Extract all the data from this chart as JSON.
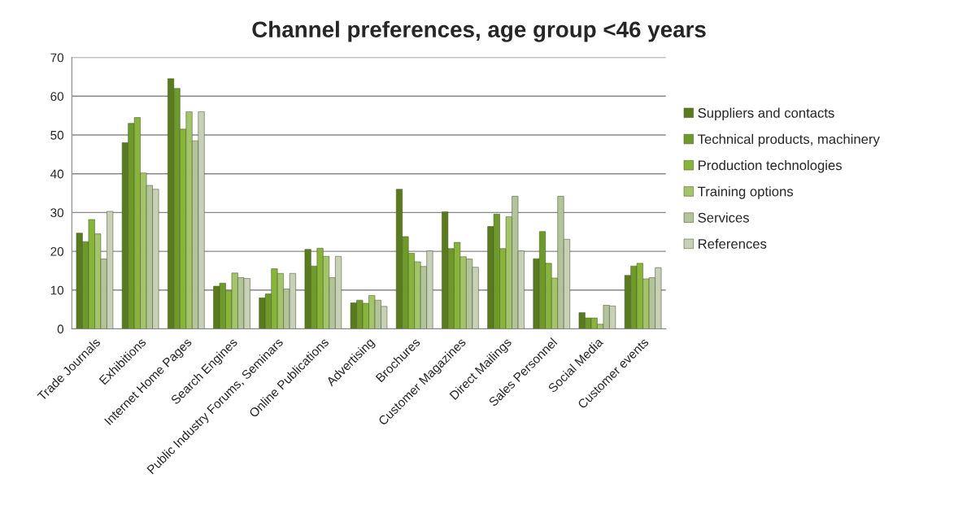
{
  "chart_data": {
    "type": "bar",
    "title": "Channel preferences, age group <46 years",
    "categories": [
      "Trade Journals",
      "Exhibitions",
      "Internet Home Pages",
      "Search Engines",
      "Public Industry Forums, Seminars",
      "Online Publications",
      "Advertising",
      "Brochures",
      "Customer Magazines",
      "Direct Mailings",
      "Sales Personnel",
      "Social Media",
      "Customer events"
    ],
    "series": [
      {
        "name": "Suppliers and contacts",
        "color": "#5a7a1e",
        "values": [
          24.7,
          48,
          64.5,
          11,
          8,
          20.5,
          6.7,
          36,
          30.2,
          26.4,
          18.1,
          4.2,
          13.8
        ]
      },
      {
        "name": "Technical products, machinery",
        "color": "#6e9a2a",
        "values": [
          22.5,
          53,
          62,
          11.8,
          9,
          16.2,
          7.4,
          23.8,
          20.7,
          29.6,
          25.1,
          2.8,
          16.2
        ]
      },
      {
        "name": "Production technologies",
        "color": "#88b43a",
        "values": [
          28.2,
          54.5,
          51.5,
          9.8,
          15.5,
          20.8,
          6.6,
          19.5,
          22.3,
          20.7,
          16.9,
          2.8,
          16.9
        ]
      },
      {
        "name": "Training options",
        "color": "#a4c46a",
        "values": [
          24.5,
          40.2,
          56,
          14.4,
          14.3,
          18.7,
          8.6,
          17.3,
          18.6,
          28.9,
          13.1,
          1.2,
          12.9
        ]
      },
      {
        "name": "Services",
        "color": "#b4c49a",
        "values": [
          18,
          37,
          48.5,
          13.2,
          10.3,
          13.2,
          7.4,
          16.1,
          18,
          34.2,
          34.2,
          6.1,
          13.2
        ]
      },
      {
        "name": "References",
        "color": "#c8d0b8",
        "values": [
          30.3,
          36,
          56,
          13,
          14.3,
          18.7,
          5.8,
          20.1,
          15.9,
          20.1,
          23.1,
          5.9,
          15.8
        ]
      }
    ],
    "ylim": [
      0,
      70
    ],
    "yticks": [
      0,
      10,
      20,
      30,
      40,
      50,
      60,
      70
    ],
    "grid": "y",
    "legend": "right"
  }
}
